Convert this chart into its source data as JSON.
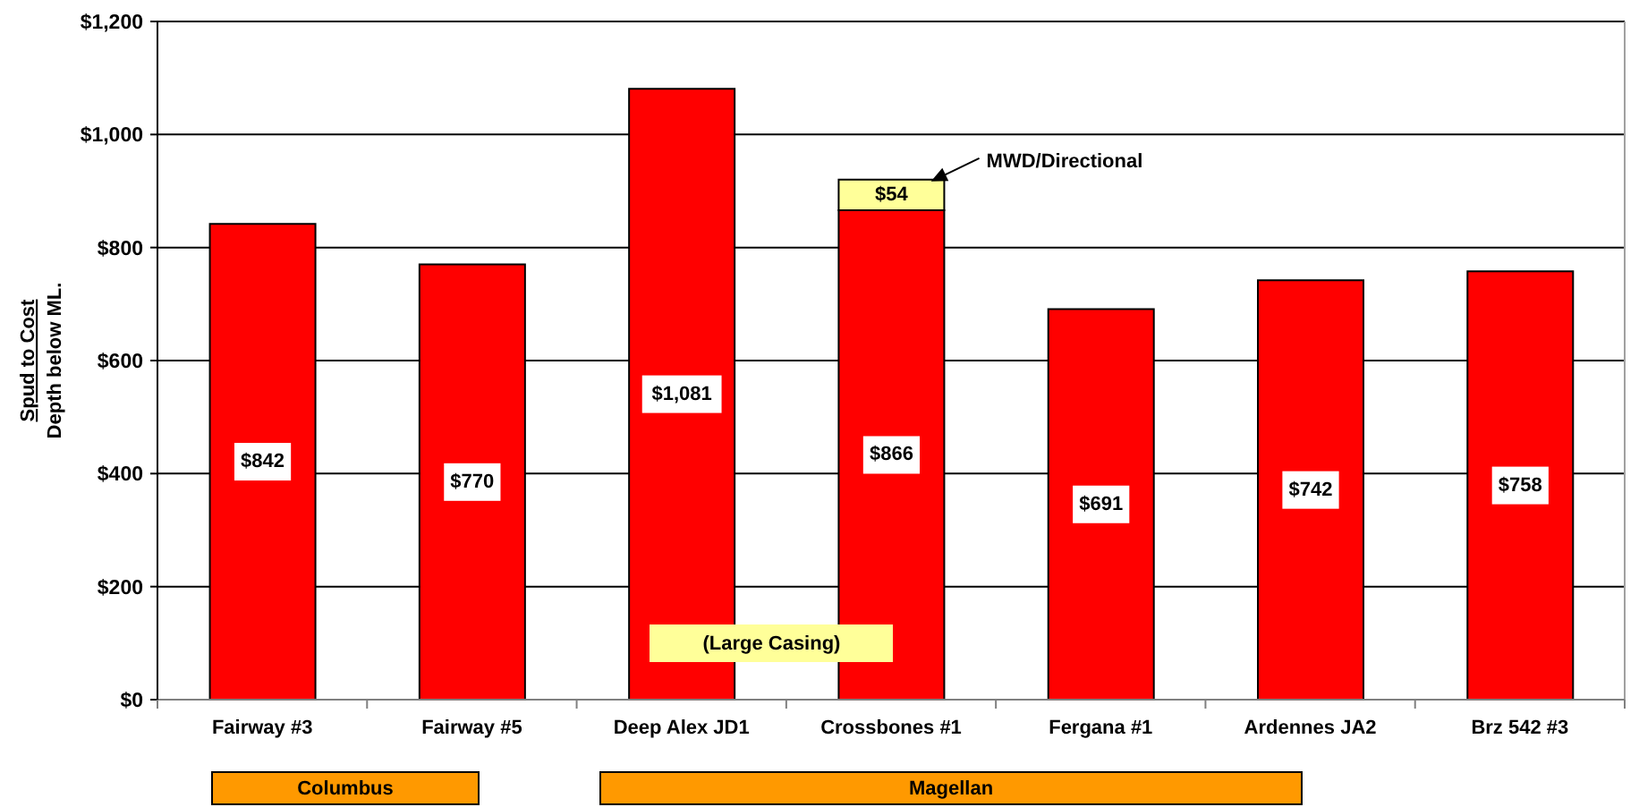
{
  "chart_data": {
    "type": "bar",
    "ylabel": "Spud to Cost\nDepth below ML.",
    "categories": [
      "Fairway #3",
      "Fairway #5",
      "Deep Alex JD1",
      "Crossbones #1",
      "Fergana #1",
      "Ardennes JA2",
      "Brz 542 #3"
    ],
    "stacked": true,
    "series": [
      {
        "color": "#ff0000",
        "values": [
          842,
          770,
          1081,
          866,
          691,
          742,
          758
        ],
        "value_labels": [
          "$842",
          "$770",
          "$1,081",
          "$866",
          "$691",
          "$742",
          "$758"
        ]
      },
      {
        "name": "MWD/Directional",
        "color": "#ffff99",
        "values": [
          null,
          null,
          null,
          54,
          null,
          null,
          null
        ],
        "value_labels": [
          null,
          null,
          null,
          "$54",
          null,
          null,
          null
        ]
      }
    ],
    "ylim": [
      0,
      1200
    ],
    "yticks": [
      {
        "value": 0,
        "label": "$0"
      },
      {
        "value": 200,
        "label": "$200"
      },
      {
        "value": 400,
        "label": "$400"
      },
      {
        "value": 600,
        "label": "$600"
      },
      {
        "value": 800,
        "label": "$800"
      },
      {
        "value": 1000,
        "label": "$1,000"
      },
      {
        "value": 1200,
        "label": "$1,200"
      }
    ],
    "grid": "y",
    "annotations": [
      "(Large Casing)",
      "Columbus",
      "Magellan"
    ]
  }
}
